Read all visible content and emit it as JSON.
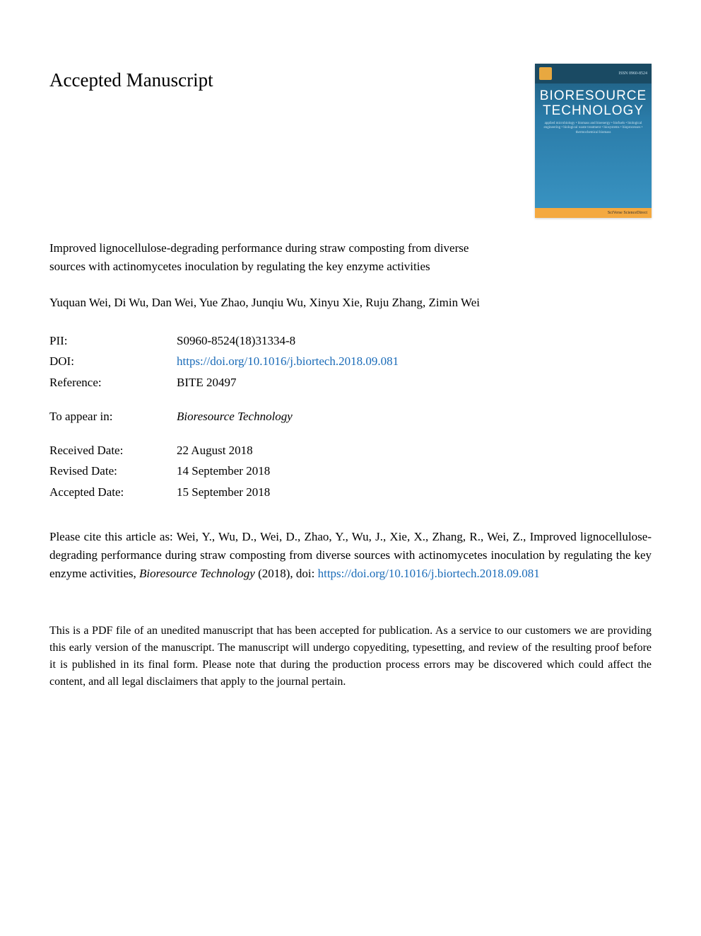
{
  "page_heading": "Accepted Manuscript",
  "journal_cover": {
    "title_line1": "BIORESOURCE",
    "title_line2": "TECHNOLOGY",
    "subtitle": "applied microbiology • biomass and bioenergy • biofuels • biological engineering • biological waste treatment • biosystems • bioprocesses • thermochemical biomass",
    "issn": "ISSN 0960-8524",
    "sd_label": "SciVerse ScienceDirect",
    "background_gradient": [
      "#1e5a7a",
      "#2a7ba8",
      "#3a95c4"
    ],
    "accent_color": "#f4a940"
  },
  "article": {
    "title": "Improved lignocellulose-degrading performance during straw composting from diverse sources with actinomycetes inoculation by regulating the key enzyme activities",
    "authors": "Yuquan Wei, Di Wu, Dan Wei, Yue Zhao, Junqiu Wu, Xinyu Xie, Ruju Zhang, Zimin Wei"
  },
  "metadata": {
    "pii": {
      "label": "PII:",
      "value": "S0960-8524(18)31334-8"
    },
    "doi": {
      "label": "DOI:",
      "value": "https://doi.org/10.1016/j.biortech.2018.09.081",
      "is_link": true
    },
    "reference": {
      "label": "Reference:",
      "value": "BITE 20497"
    },
    "to_appear_in": {
      "label": "To appear in:",
      "value": "Bioresource Technology"
    },
    "received": {
      "label": "Received Date:",
      "value": "22 August 2018"
    },
    "revised": {
      "label": "Revised Date:",
      "value": "14 September 2018"
    },
    "accepted": {
      "label": "Accepted Date:",
      "value": "15 September 2018"
    }
  },
  "citation": {
    "prefix": "Please cite this article as: Wei, Y., Wu, D., Wei, D., Zhao, Y., Wu, J., Xie, X., Zhang, R., Wei, Z., Improved lignocellulose-degrading performance during straw composting from diverse sources with actinomycetes inoculation by regulating the key enzyme activities, ",
    "journal": "Bioresource Technology",
    "year_doi": " (2018), doi: ",
    "link": "https://doi.org/10.1016/j.biortech.2018.09.081"
  },
  "disclaimer": "This is a PDF file of an unedited manuscript that has been accepted for publication. As a service to our customers we are providing this early version of the manuscript. The manuscript will undergo copyediting, typesetting, and review of the resulting proof before it is published in its final form. Please note that during the production process errors may be discovered which could affect the content, and all legal disclaimers that apply to the journal pertain.",
  "colors": {
    "text": "#000000",
    "link": "#1a6bb8",
    "background": "#ffffff"
  },
  "typography": {
    "heading_fontsize": 27,
    "body_fontsize": 17,
    "disclaimer_fontsize": 16,
    "font_family": "Georgia, Times New Roman, serif"
  }
}
